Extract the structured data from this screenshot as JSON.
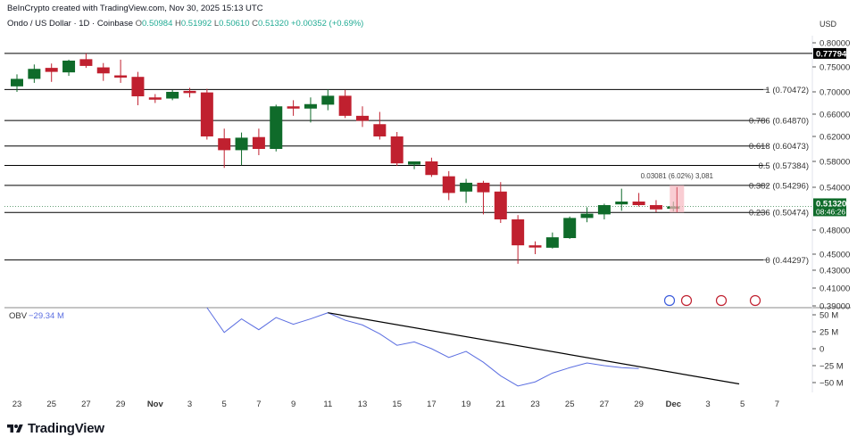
{
  "header": {
    "credit": "BeInCrypto created with TradingView.com, Nov 30, 2025 15:13 UTC",
    "symbol": "Ondo / US Dollar · 1D · Coinbase",
    "o_label": "O",
    "o": "0.50984",
    "h_label": "H",
    "h": "0.51992",
    "l_label": "L",
    "l": "0.50610",
    "c_label": "C",
    "c": "0.51320",
    "change": "+0.00352 (+0.69%)"
  },
  "currency": "USD",
  "brand": "TradingView",
  "colors": {
    "up": "#0f6b2a",
    "down": "#c0202f",
    "obv": "#5b6ee1",
    "trend": "#000000",
    "fib": "#000000",
    "axis": "#333333"
  },
  "chart_data": {
    "type": "candlestick",
    "title": "Ondo / US Dollar · 1D · Coinbase",
    "y_ticks": [
      "0.80000",
      "0.75000",
      "0.70000",
      "0.66000",
      "0.62000",
      "0.58000",
      "0.54000",
      "0.48000",
      "0.45000",
      "0.43000",
      "0.41000",
      "0.39000"
    ],
    "x_ticks": [
      "23",
      "25",
      "27",
      "29",
      "Nov",
      "3",
      "5",
      "7",
      "9",
      "11",
      "13",
      "15",
      "17",
      "19",
      "21",
      "23",
      "25",
      "27",
      "29",
      "Dec",
      "3",
      "5",
      "7"
    ],
    "price_marker": "0.77794",
    "current_price": "0.51320",
    "countdown": "08:46:26",
    "fib_levels": [
      {
        "label": "1 (0.70472)",
        "value": 0.70472
      },
      {
        "label": "0.786 (0.64870)",
        "value": 0.6487
      },
      {
        "label": "0.618 (0.60473)",
        "value": 0.60473
      },
      {
        "label": "0.5 (0.57384)",
        "value": 0.57384
      },
      {
        "label": "0.382 (0.54296)",
        "value": 0.54296
      },
      {
        "label": "0.236 (0.50474)",
        "value": 0.50474
      },
      {
        "label": "0 (0.44297)",
        "value": 0.44297
      }
    ],
    "top_line": 0.77794,
    "measure_label": "0.03081 (6.02%) 3,081",
    "candles": [
      {
        "date": "Oct 23",
        "o": 0.711,
        "h": 0.735,
        "l": 0.7,
        "c": 0.726
      },
      {
        "date": "Oct 24",
        "o": 0.726,
        "h": 0.755,
        "l": 0.718,
        "c": 0.746
      },
      {
        "date": "Oct 25",
        "o": 0.748,
        "h": 0.757,
        "l": 0.72,
        "c": 0.74
      },
      {
        "date": "Oct 26",
        "o": 0.739,
        "h": 0.765,
        "l": 0.732,
        "c": 0.763
      },
      {
        "date": "Oct 27",
        "o": 0.766,
        "h": 0.778,
        "l": 0.748,
        "c": 0.752
      },
      {
        "date": "Oct 28",
        "o": 0.749,
        "h": 0.758,
        "l": 0.722,
        "c": 0.737
      },
      {
        "date": "Oct 29",
        "o": 0.733,
        "h": 0.765,
        "l": 0.718,
        "c": 0.73
      },
      {
        "date": "Oct 30",
        "o": 0.73,
        "h": 0.74,
        "l": 0.676,
        "c": 0.692
      },
      {
        "date": "Oct 31",
        "o": 0.69,
        "h": 0.696,
        "l": 0.68,
        "c": 0.689
      },
      {
        "date": "Nov 1",
        "o": 0.688,
        "h": 0.704,
        "l": 0.685,
        "c": 0.7
      },
      {
        "date": "Nov 2",
        "o": 0.702,
        "h": 0.708,
        "l": 0.69,
        "c": 0.699
      },
      {
        "date": "Nov 3",
        "o": 0.699,
        "h": 0.706,
        "l": 0.615,
        "c": 0.62
      },
      {
        "date": "Nov 4",
        "o": 0.617,
        "h": 0.634,
        "l": 0.57,
        "c": 0.598
      },
      {
        "date": "Nov 5",
        "o": 0.598,
        "h": 0.627,
        "l": 0.574,
        "c": 0.618
      },
      {
        "date": "Nov 6",
        "o": 0.619,
        "h": 0.634,
        "l": 0.59,
        "c": 0.6
      },
      {
        "date": "Nov 7",
        "o": 0.6,
        "h": 0.677,
        "l": 0.596,
        "c": 0.674
      },
      {
        "date": "Nov 8",
        "o": 0.674,
        "h": 0.685,
        "l": 0.657,
        "c": 0.67
      },
      {
        "date": "Nov 9",
        "o": 0.67,
        "h": 0.69,
        "l": 0.645,
        "c": 0.678
      },
      {
        "date": "Nov 10",
        "o": 0.677,
        "h": 0.705,
        "l": 0.667,
        "c": 0.693
      },
      {
        "date": "Nov 11",
        "o": 0.693,
        "h": 0.704,
        "l": 0.653,
        "c": 0.657
      },
      {
        "date": "Nov 12",
        "o": 0.657,
        "h": 0.674,
        "l": 0.637,
        "c": 0.648
      },
      {
        "date": "Nov 13",
        "o": 0.642,
        "h": 0.664,
        "l": 0.615,
        "c": 0.62
      },
      {
        "date": "Nov 14",
        "o": 0.62,
        "h": 0.628,
        "l": 0.573,
        "c": 0.577
      },
      {
        "date": "Nov 15",
        "o": 0.575,
        "h": 0.58,
        "l": 0.568,
        "c": 0.58
      },
      {
        "date": "Nov 16",
        "o": 0.58,
        "h": 0.586,
        "l": 0.556,
        "c": 0.559
      },
      {
        "date": "Nov 17",
        "o": 0.557,
        "h": 0.565,
        "l": 0.522,
        "c": 0.532
      },
      {
        "date": "Nov 18",
        "o": 0.534,
        "h": 0.553,
        "l": 0.518,
        "c": 0.547
      },
      {
        "date": "Nov 19",
        "o": 0.547,
        "h": 0.55,
        "l": 0.502,
        "c": 0.533
      },
      {
        "date": "Nov 20",
        "o": 0.534,
        "h": 0.548,
        "l": 0.49,
        "c": 0.495
      },
      {
        "date": "Nov 21",
        "o": 0.495,
        "h": 0.501,
        "l": 0.438,
        "c": 0.461
      },
      {
        "date": "Nov 22",
        "o": 0.461,
        "h": 0.466,
        "l": 0.45,
        "c": 0.459
      },
      {
        "date": "Nov 23",
        "o": 0.458,
        "h": 0.477,
        "l": 0.457,
        "c": 0.471
      },
      {
        "date": "Nov 24",
        "o": 0.47,
        "h": 0.499,
        "l": 0.469,
        "c": 0.497
      },
      {
        "date": "Nov 25",
        "o": 0.497,
        "h": 0.512,
        "l": 0.491,
        "c": 0.503
      },
      {
        "date": "Nov 26",
        "o": 0.502,
        "h": 0.517,
        "l": 0.495,
        "c": 0.515
      },
      {
        "date": "Nov 27",
        "o": 0.516,
        "h": 0.538,
        "l": 0.507,
        "c": 0.52
      },
      {
        "date": "Nov 28",
        "o": 0.52,
        "h": 0.532,
        "l": 0.513,
        "c": 0.515
      },
      {
        "date": "Nov 29",
        "o": 0.515,
        "h": 0.522,
        "l": 0.505,
        "c": 0.509
      },
      {
        "date": "Nov 30",
        "o": 0.50984,
        "h": 0.51992,
        "l": 0.5061,
        "c": 0.5132
      }
    ],
    "obv": {
      "label": "OBV",
      "value": "−29.34 M",
      "y_ticks": [
        "50 M",
        "25 M",
        "0",
        "−25 M",
        "−50 M"
      ],
      "values": [
        62,
        24,
        44,
        28,
        46,
        36,
        44,
        53,
        42,
        35,
        22,
        5,
        10,
        0,
        -13,
        -4,
        -20,
        -40,
        -55,
        -49,
        -36,
        -28,
        -21,
        -25,
        -28,
        -29.34
      ],
      "start_date": "Nov 3"
    }
  }
}
